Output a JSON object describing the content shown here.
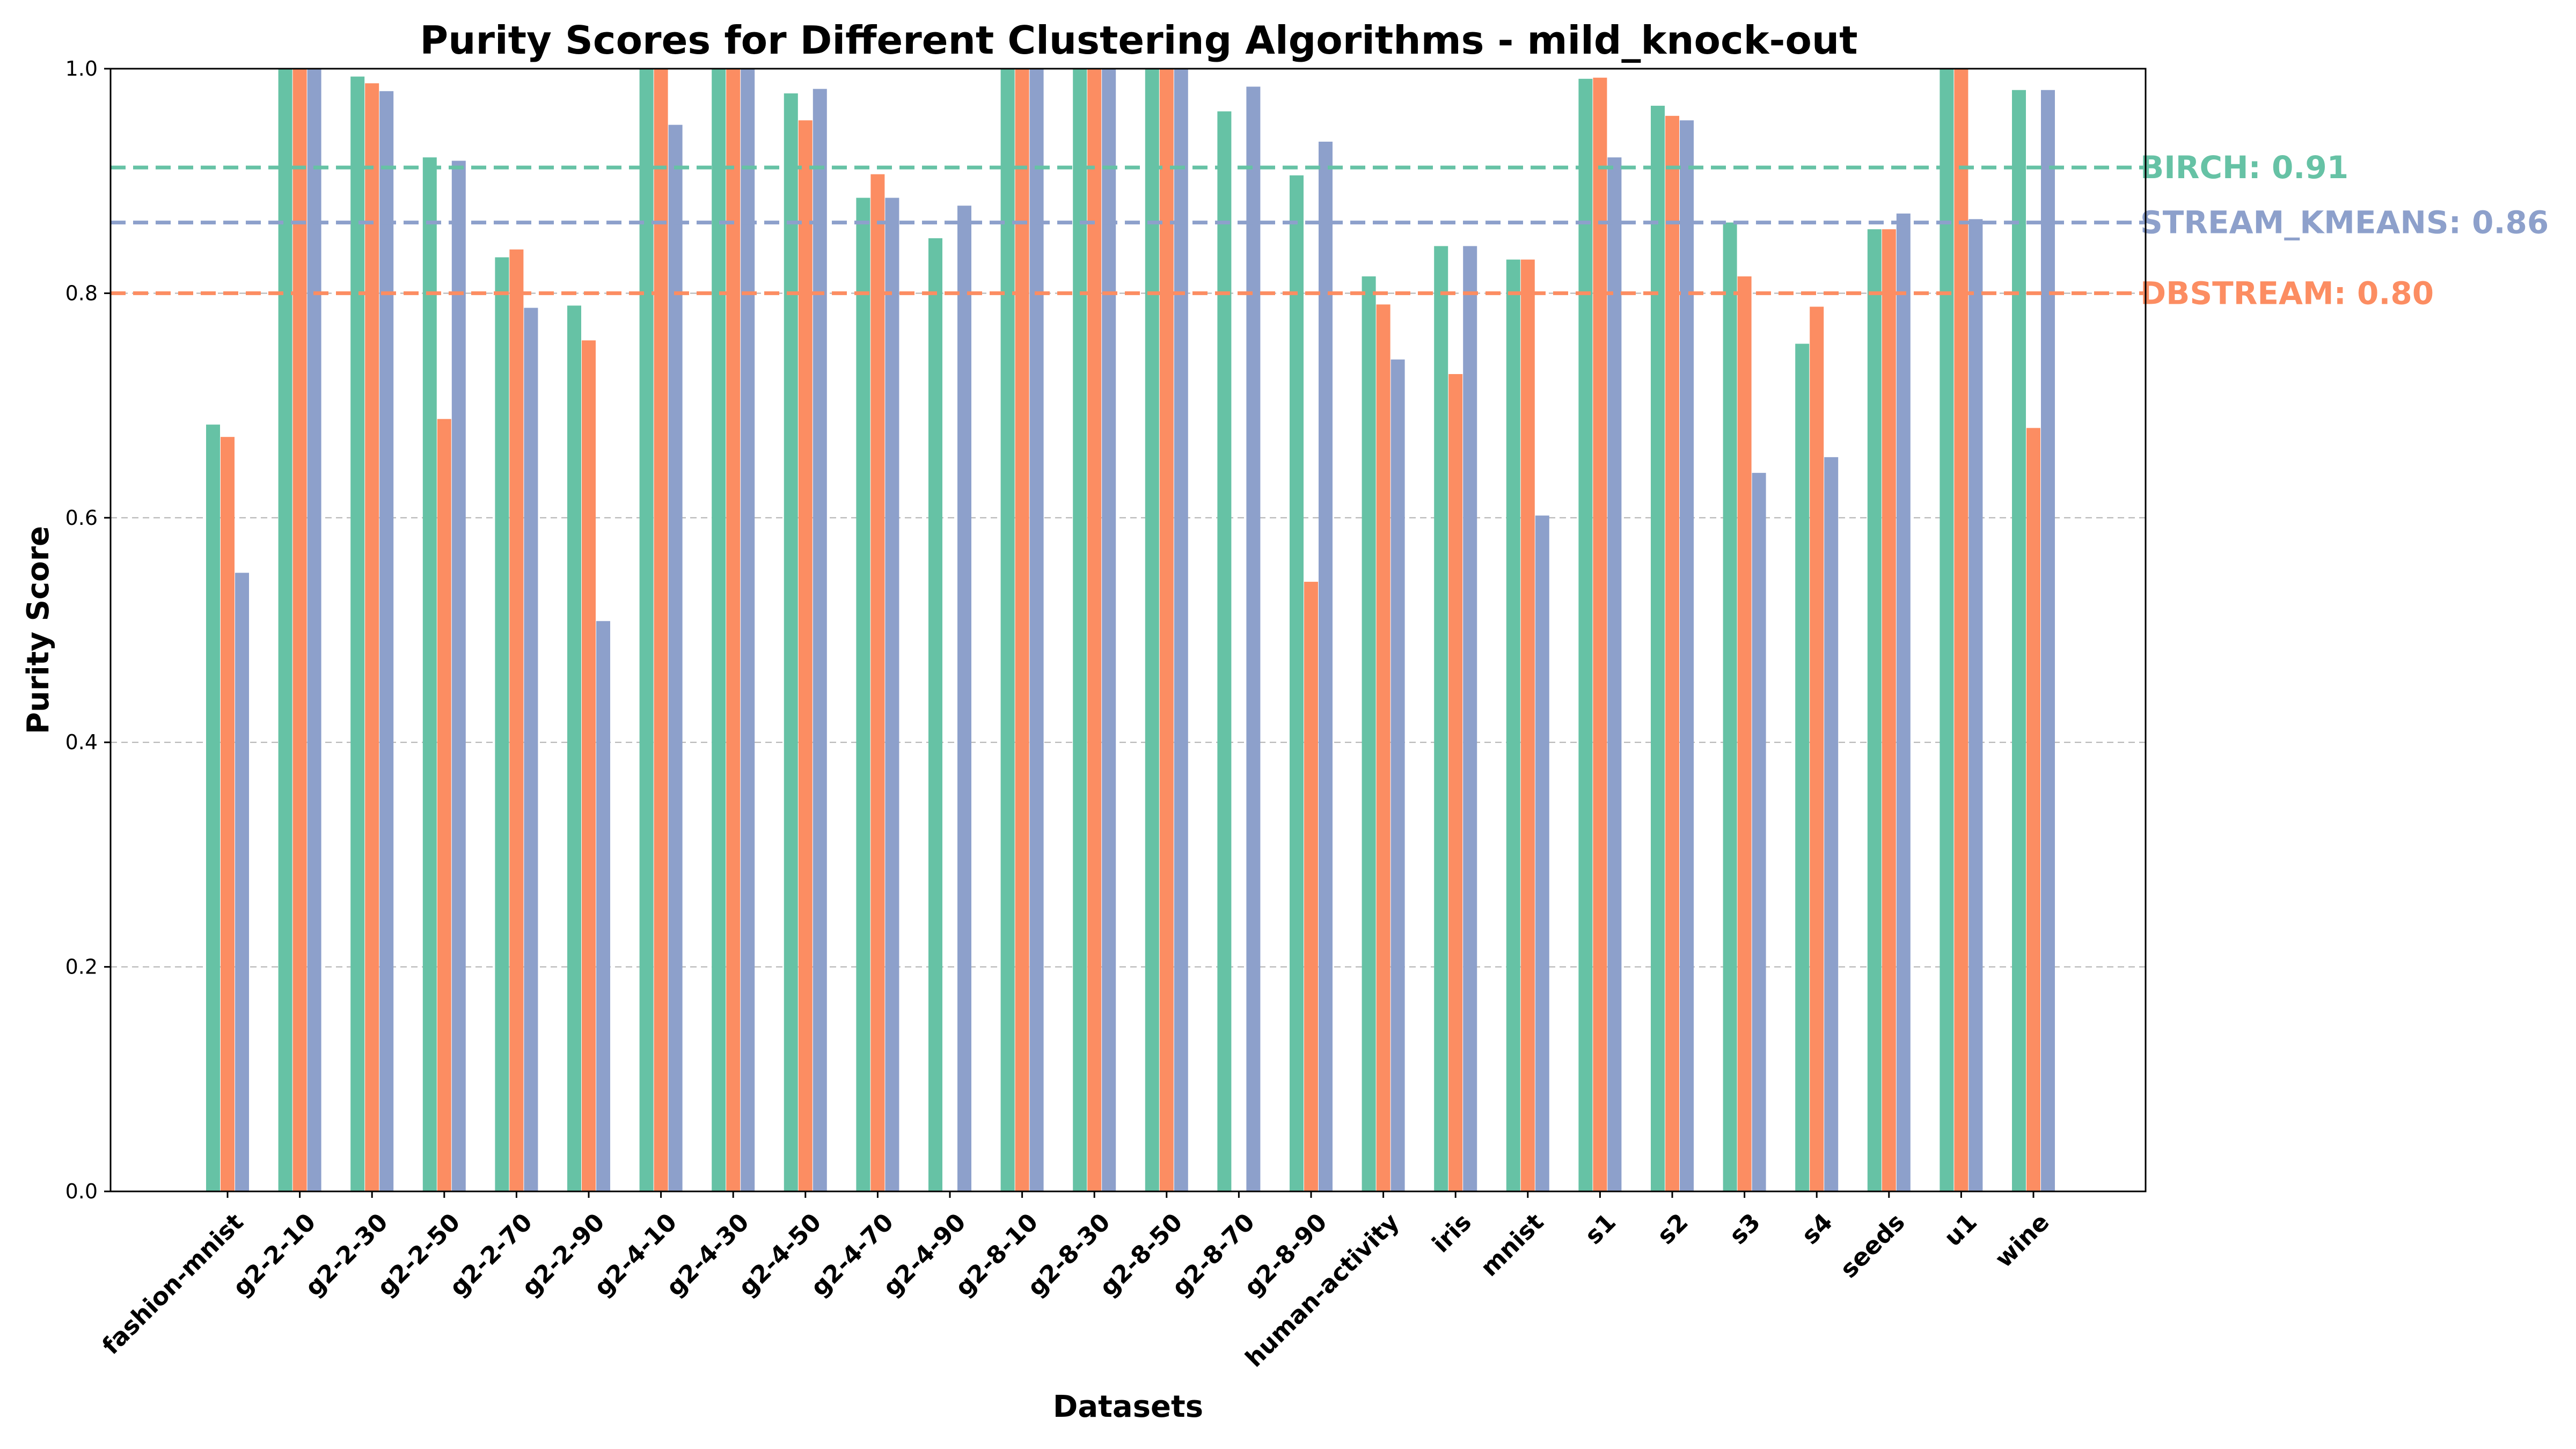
{
  "chart_data": {
    "type": "bar",
    "title": "Purity Scores for Different Clustering Algorithms - mild_knock-out",
    "xlabel": "Datasets",
    "ylabel": "Purity Score",
    "ylim": [
      0,
      1.0
    ],
    "yticks": [
      "0.0",
      "0.2",
      "0.4",
      "0.6",
      "0.8",
      "1.0"
    ],
    "grid": "y-dashed",
    "legend": "right-side reference labels",
    "categories": [
      "fashion-mnist",
      "g2-2-10",
      "g2-2-30",
      "g2-2-50",
      "g2-2-70",
      "g2-2-90",
      "g2-4-10",
      "g2-4-30",
      "g2-4-50",
      "g2-4-70",
      "g2-4-90",
      "g2-8-10",
      "g2-8-30",
      "g2-8-50",
      "g2-8-70",
      "g2-8-90",
      "human-activity",
      "iris",
      "mnist",
      "s1",
      "s2",
      "s3",
      "s4",
      "seeds",
      "u1",
      "wine"
    ],
    "series": [
      {
        "color": "#66c2a5",
        "values": [
          0.683,
          1.0,
          0.993,
          0.921,
          0.832,
          0.789,
          1.0,
          1.0,
          0.978,
          0.885,
          0.849,
          1.0,
          1.0,
          1.0,
          0.962,
          0.905,
          0.815,
          0.842,
          0.83,
          0.991,
          0.967,
          0.863,
          0.755,
          0.857,
          1.0,
          0.981
        ]
      },
      {
        "color": "#fc8d62",
        "values": [
          0.672,
          1.0,
          0.987,
          0.688,
          0.839,
          0.758,
          1.0,
          1.0,
          0.954,
          0.906,
          null,
          1.0,
          1.0,
          1.0,
          null,
          0.543,
          0.79,
          0.728,
          0.83,
          0.992,
          0.958,
          0.815,
          0.788,
          0.857,
          1.0,
          0.68
        ]
      },
      {
        "color": "#8da0cb",
        "values": [
          0.551,
          1.0,
          0.98,
          0.918,
          0.787,
          0.508,
          0.95,
          1.0,
          0.982,
          0.885,
          0.878,
          1.0,
          1.0,
          1.0,
          0.984,
          0.935,
          0.741,
          0.842,
          0.602,
          0.921,
          0.954,
          0.64,
          0.654,
          0.871,
          0.866,
          0.981
        ]
      }
    ],
    "reference_lines": [
      {
        "label": "BIRCH: 0.91",
        "value": 0.912,
        "color": "#66c2a5"
      },
      {
        "label": "STREAM_KMEANS: 0.86",
        "value": 0.863,
        "color": "#8da0cb"
      },
      {
        "label": "DBSTREAM: 0.80",
        "value": 0.8,
        "color": "#fc8d62"
      }
    ]
  }
}
